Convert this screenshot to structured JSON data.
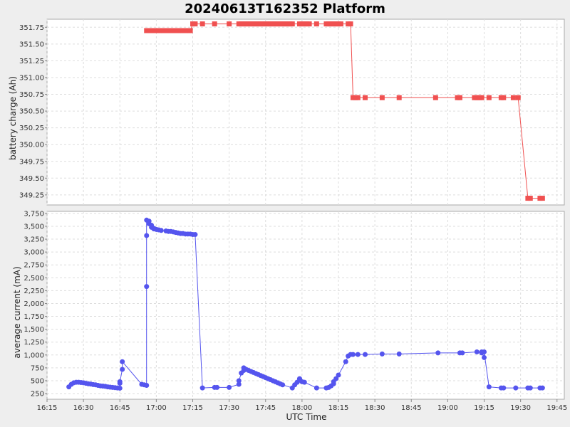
{
  "chart_data": [
    {
      "type": "line",
      "title": "20240613T162352 Platform",
      "ylabel": "battery charge (Ah)",
      "ylim": [
        349.1,
        351.87
      ],
      "yticks": [
        "351.75",
        "351.50",
        "351.25",
        "351.00",
        "350.75",
        "350.50",
        "350.25",
        "350.00",
        "349.75",
        "349.50",
        "349.25"
      ],
      "grid": true,
      "marker": "square",
      "color": "#f05050",
      "series": [
        {
          "x": [
            "16:56",
            "16:57",
            "16:58",
            "16:59",
            "17:00",
            "17:01",
            "17:02",
            "17:03",
            "17:04",
            "17:05",
            "17:06",
            "17:07",
            "17:08",
            "17:09",
            "17:10",
            "17:11",
            "17:12",
            "17:13",
            "17:14",
            "17:15",
            "17:16",
            "17:19",
            "17:24",
            "17:30",
            "17:34",
            "17:35",
            "17:36",
            "17:37",
            "17:38",
            "17:39",
            "17:40",
            "17:41",
            "17:42",
            "17:43",
            "17:44",
            "17:45",
            "17:46",
            "17:47",
            "17:48",
            "17:49",
            "17:50",
            "17:51",
            "17:52",
            "17:53",
            "17:54",
            "17:55",
            "17:56",
            "17:59",
            "18:00",
            "18:01",
            "18:02",
            "18:03",
            "18:06",
            "18:10",
            "18:11",
            "18:12",
            "18:13",
            "18:14",
            "18:15",
            "18:16",
            "18:19",
            "18:20",
            "18:21",
            "18:22",
            "18:23",
            "18:26",
            "18:33",
            "18:40",
            "18:55",
            "19:04",
            "19:05",
            "19:11",
            "19:12",
            "19:13",
            "19:14",
            "19:17",
            "19:22",
            "19:23",
            "19:27",
            "19:29",
            "19:33",
            "19:34",
            "19:38",
            "19:39"
          ],
          "values": [
            351.7,
            351.7,
            351.7,
            351.7,
            351.7,
            351.7,
            351.7,
            351.7,
            351.7,
            351.7,
            351.7,
            351.7,
            351.7,
            351.7,
            351.7,
            351.7,
            351.7,
            351.7,
            351.7,
            351.8,
            351.8,
            351.8,
            351.8,
            351.8,
            351.8,
            351.8,
            351.8,
            351.8,
            351.8,
            351.8,
            351.8,
            351.8,
            351.8,
            351.8,
            351.8,
            351.8,
            351.8,
            351.8,
            351.8,
            351.8,
            351.8,
            351.8,
            351.8,
            351.8,
            351.8,
            351.8,
            351.8,
            351.8,
            351.8,
            351.8,
            351.8,
            351.8,
            351.8,
            351.8,
            351.8,
            351.8,
            351.8,
            351.8,
            351.8,
            351.8,
            351.8,
            351.8,
            350.7,
            350.7,
            350.7,
            350.7,
            350.7,
            350.7,
            350.7,
            350.7,
            350.7,
            350.7,
            350.7,
            350.7,
            350.7,
            350.7,
            350.7,
            350.7,
            350.7,
            350.7,
            349.2,
            349.2,
            349.2,
            349.2
          ]
        }
      ]
    },
    {
      "type": "line",
      "ylabel": "average current (mA)",
      "xlabel": "UTC Time",
      "ylim": [
        140,
        3790
      ],
      "yticks": [
        "3,750",
        "3,500",
        "3,250",
        "3,000",
        "2,750",
        "2,500",
        "2,250",
        "2,000",
        "1,750",
        "1,500",
        "1,250",
        "1,000",
        "750",
        "500",
        "250"
      ],
      "xticks": [
        "16:15",
        "16:30",
        "16:45",
        "17:00",
        "17:15",
        "17:30",
        "17:45",
        "18:00",
        "18:15",
        "18:30",
        "18:45",
        "19:00",
        "19:15",
        "19:30",
        "19:45"
      ],
      "grid": true,
      "marker": "circle",
      "color": "#5555ee",
      "series": [
        {
          "x": [
            "16:24",
            "16:25",
            "16:26",
            "16:27",
            "16:28",
            "16:29",
            "16:30",
            "16:31",
            "16:32",
            "16:33",
            "16:34",
            "16:35",
            "16:36",
            "16:37",
            "16:38",
            "16:39",
            "16:40",
            "16:41",
            "16:42",
            "16:43",
            "16:44",
            "16:45",
            "16:45",
            "16:45",
            "16:46",
            "16:46",
            "16:54",
            "16:55",
            "16:56",
            "16:56",
            "16:56",
            "16:56",
            "16:57",
            "16:57",
            "16:58",
            "16:58",
            "16:59",
            "16:59",
            "17:00",
            "17:00",
            "17:01",
            "17:02",
            "17:04",
            "17:05",
            "17:06",
            "17:07",
            "17:08",
            "17:09",
            "17:10",
            "17:11",
            "17:12",
            "17:13",
            "17:14",
            "17:15",
            "17:16",
            "17:19",
            "17:24",
            "17:25",
            "17:30",
            "17:34",
            "17:34",
            "17:35",
            "17:36",
            "17:36",
            "17:37",
            "17:38",
            "17:39",
            "17:40",
            "17:41",
            "17:42",
            "17:43",
            "17:44",
            "17:45",
            "17:46",
            "17:47",
            "17:48",
            "17:49",
            "17:50",
            "17:51",
            "17:52",
            "17:56",
            "17:57",
            "17:58",
            "17:59",
            "17:59",
            "18:00",
            "18:01",
            "18:06",
            "18:10",
            "18:11",
            "18:12",
            "18:13",
            "18:13",
            "18:14",
            "18:15",
            "18:18",
            "18:19",
            "18:20",
            "18:21",
            "18:23",
            "18:26",
            "18:33",
            "18:40",
            "18:56",
            "19:05",
            "19:06",
            "19:12",
            "19:14",
            "19:14",
            "19:15",
            "19:15",
            "19:17",
            "19:22",
            "19:23",
            "19:28",
            "19:33",
            "19:34",
            "19:38",
            "19:39"
          ],
          "values": [
            380,
            430,
            460,
            470,
            470,
            465,
            460,
            450,
            440,
            435,
            425,
            420,
            410,
            400,
            395,
            390,
            380,
            375,
            370,
            365,
            360,
            355,
            450,
            480,
            720,
            870,
            430,
            420,
            410,
            2330,
            3320,
            3620,
            3600,
            3550,
            3520,
            3480,
            3460,
            3450,
            3440,
            3440,
            3430,
            3420,
            3410,
            3400,
            3400,
            3390,
            3380,
            3370,
            3360,
            3360,
            3350,
            3350,
            3350,
            3340,
            3340,
            360,
            370,
            370,
            370,
            430,
            500,
            650,
            700,
            750,
            720,
            700,
            680,
            660,
            640,
            620,
            600,
            580,
            560,
            540,
            520,
            500,
            480,
            460,
            440,
            420,
            360,
            420,
            470,
            530,
            540,
            480,
            470,
            360,
            360,
            370,
            400,
            440,
            480,
            540,
            610,
            870,
            980,
            1010,
            1010,
            1010,
            1010,
            1020,
            1020,
            1040,
            1040,
            1040,
            1060,
            1060,
            1040,
            950,
            1060,
            380,
            360,
            360,
            360,
            360,
            360,
            360,
            360
          ]
        }
      ]
    }
  ]
}
